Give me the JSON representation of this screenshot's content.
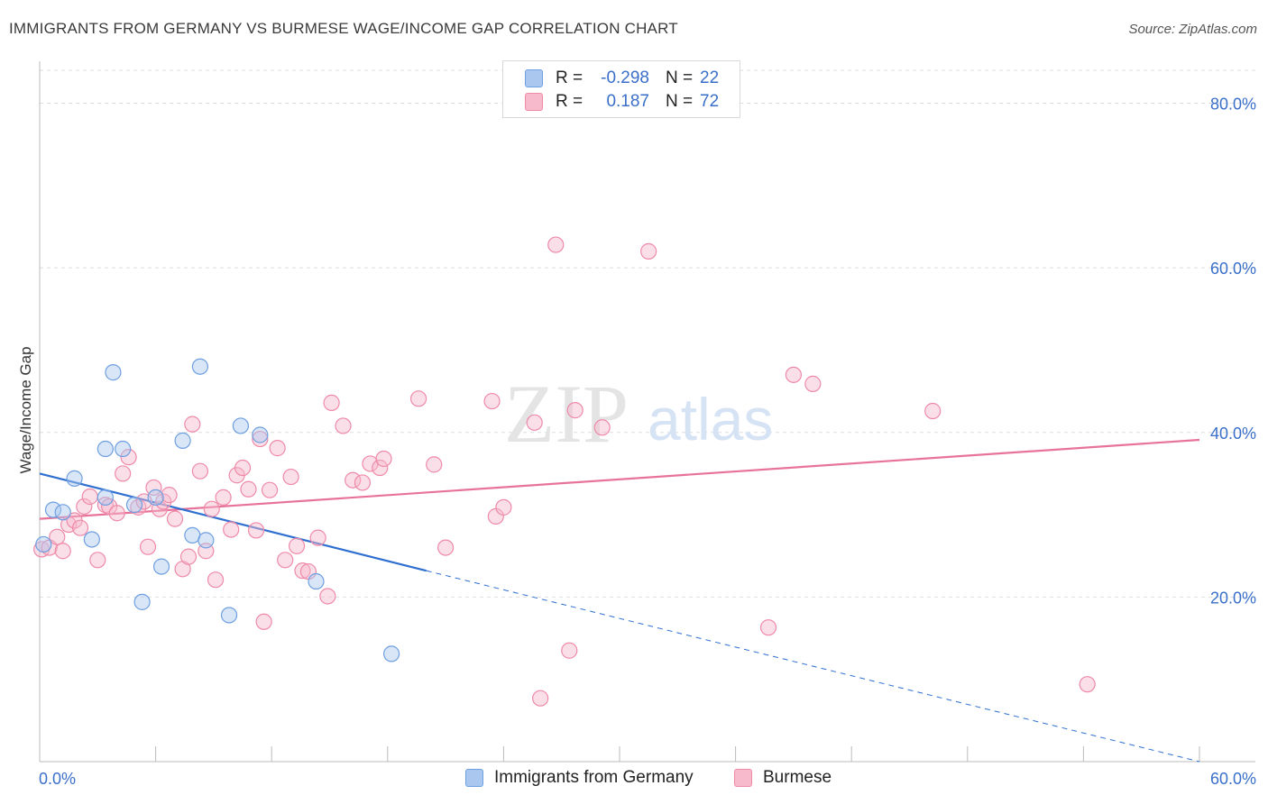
{
  "title": "IMMIGRANTS FROM GERMANY VS BURMESE WAGE/INCOME GAP CORRELATION CHART",
  "source": "Source: ZipAtlas.com",
  "watermark": {
    "zip": "ZIP",
    "atlas": "atlas"
  },
  "legend_top": [
    {
      "label": "R =",
      "r": "-0.298",
      "n_label": "N =",
      "n": "22",
      "color": "#aac7ef"
    },
    {
      "label": "R =",
      "r": "0.187",
      "n_label": "N =",
      "n": "72",
      "color": "#f7b9cc"
    }
  ],
  "legend_bottom": [
    {
      "label": "Immigrants from Germany",
      "color": "#aac7ef"
    },
    {
      "label": "Burmese",
      "color": "#f7b9cc"
    }
  ],
  "chart_data": {
    "type": "scatter",
    "title": "IMMIGRANTS FROM GERMANY VS BURMESE WAGE/INCOME GAP CORRELATION CHART",
    "xlabel": "",
    "ylabel": "Wage/Income Gap",
    "xlim": [
      0,
      60
    ],
    "ylim": [
      0,
      84
    ],
    "x_tick_labels": [
      "0.0%",
      "60.0%"
    ],
    "y_ticks": [
      20,
      40,
      60,
      80
    ],
    "y_tick_labels": [
      "20.0%",
      "40.0%",
      "60.0%",
      "80.0%"
    ],
    "grid": true,
    "legend_placement": "bottom",
    "series": [
      {
        "name": "Immigrants from Germany",
        "color": "#aac7ef",
        "stroke": "#6e9fe0",
        "trend": {
          "x0": 0,
          "y0": 35.0,
          "x1": 20,
          "y1": 23.2,
          "dash_to_x": 60,
          "dash_to_y": 0.0,
          "color": "#2f6fd0"
        },
        "points": [
          [
            0.2,
            26.4
          ],
          [
            0.7,
            30.6
          ],
          [
            1.2,
            30.3
          ],
          [
            1.8,
            34.4
          ],
          [
            2.7,
            27.0
          ],
          [
            3.4,
            32.1
          ],
          [
            3.4,
            38.0
          ],
          [
            3.8,
            47.3
          ],
          [
            4.3,
            38.0
          ],
          [
            4.9,
            31.2
          ],
          [
            5.3,
            19.4
          ],
          [
            6.0,
            32.1
          ],
          [
            6.3,
            23.7
          ],
          [
            7.4,
            39.0
          ],
          [
            7.9,
            27.5
          ],
          [
            8.3,
            48.0
          ],
          [
            8.6,
            26.9
          ],
          [
            9.8,
            17.8
          ],
          [
            10.4,
            40.8
          ],
          [
            11.4,
            39.7
          ],
          [
            14.3,
            21.9
          ],
          [
            18.2,
            13.1
          ]
        ]
      },
      {
        "name": "Burmese",
        "color": "#f7b9cc",
        "stroke": "#ee8aa8",
        "trend": {
          "x0": 0,
          "y0": 29.5,
          "x1": 60,
          "y1": 39.1,
          "color": "#e8739a"
        },
        "points": [
          [
            0.1,
            25.8
          ],
          [
            0.5,
            26.0
          ],
          [
            0.9,
            27.3
          ],
          [
            1.2,
            25.6
          ],
          [
            1.5,
            28.8
          ],
          [
            1.8,
            29.3
          ],
          [
            2.1,
            28.4
          ],
          [
            2.3,
            31.0
          ],
          [
            2.6,
            32.2
          ],
          [
            3.0,
            24.5
          ],
          [
            3.4,
            31.2
          ],
          [
            3.6,
            31.0
          ],
          [
            4.0,
            30.2
          ],
          [
            4.3,
            35.0
          ],
          [
            4.6,
            37.0
          ],
          [
            5.1,
            30.9
          ],
          [
            5.4,
            31.6
          ],
          [
            5.6,
            26.1
          ],
          [
            5.9,
            33.3
          ],
          [
            6.2,
            30.7
          ],
          [
            6.4,
            31.6
          ],
          [
            6.7,
            32.4
          ],
          [
            7.0,
            29.5
          ],
          [
            7.4,
            23.4
          ],
          [
            7.7,
            24.9
          ],
          [
            7.9,
            41.0
          ],
          [
            8.3,
            35.3
          ],
          [
            8.6,
            25.6
          ],
          [
            8.9,
            30.7
          ],
          [
            9.1,
            22.1
          ],
          [
            9.5,
            32.1
          ],
          [
            9.9,
            28.2
          ],
          [
            10.2,
            34.8
          ],
          [
            10.5,
            35.7
          ],
          [
            10.8,
            33.1
          ],
          [
            11.2,
            28.1
          ],
          [
            11.4,
            39.2
          ],
          [
            11.6,
            17.0
          ],
          [
            11.9,
            33.0
          ],
          [
            12.3,
            38.1
          ],
          [
            12.7,
            24.5
          ],
          [
            13.0,
            34.6
          ],
          [
            13.3,
            26.2
          ],
          [
            13.6,
            23.2
          ],
          [
            13.9,
            23.1
          ],
          [
            14.4,
            27.2
          ],
          [
            14.9,
            20.1
          ],
          [
            15.1,
            43.6
          ],
          [
            15.7,
            40.8
          ],
          [
            16.2,
            34.2
          ],
          [
            16.7,
            33.9
          ],
          [
            17.1,
            36.2
          ],
          [
            17.6,
            35.7
          ],
          [
            17.8,
            36.8
          ],
          [
            19.6,
            44.1
          ],
          [
            20.4,
            36.1
          ],
          [
            21.0,
            26.0
          ],
          [
            23.4,
            43.8
          ],
          [
            23.6,
            29.8
          ],
          [
            24.0,
            30.9
          ],
          [
            25.6,
            41.2
          ],
          [
            25.9,
            7.7
          ],
          [
            26.7,
            62.8
          ],
          [
            27.4,
            13.5
          ],
          [
            27.7,
            42.7
          ],
          [
            29.1,
            40.6
          ],
          [
            31.5,
            62.0
          ],
          [
            37.7,
            16.3
          ],
          [
            39.0,
            47.0
          ],
          [
            40.0,
            45.9
          ],
          [
            46.2,
            42.6
          ],
          [
            54.2,
            9.4
          ]
        ]
      }
    ]
  }
}
